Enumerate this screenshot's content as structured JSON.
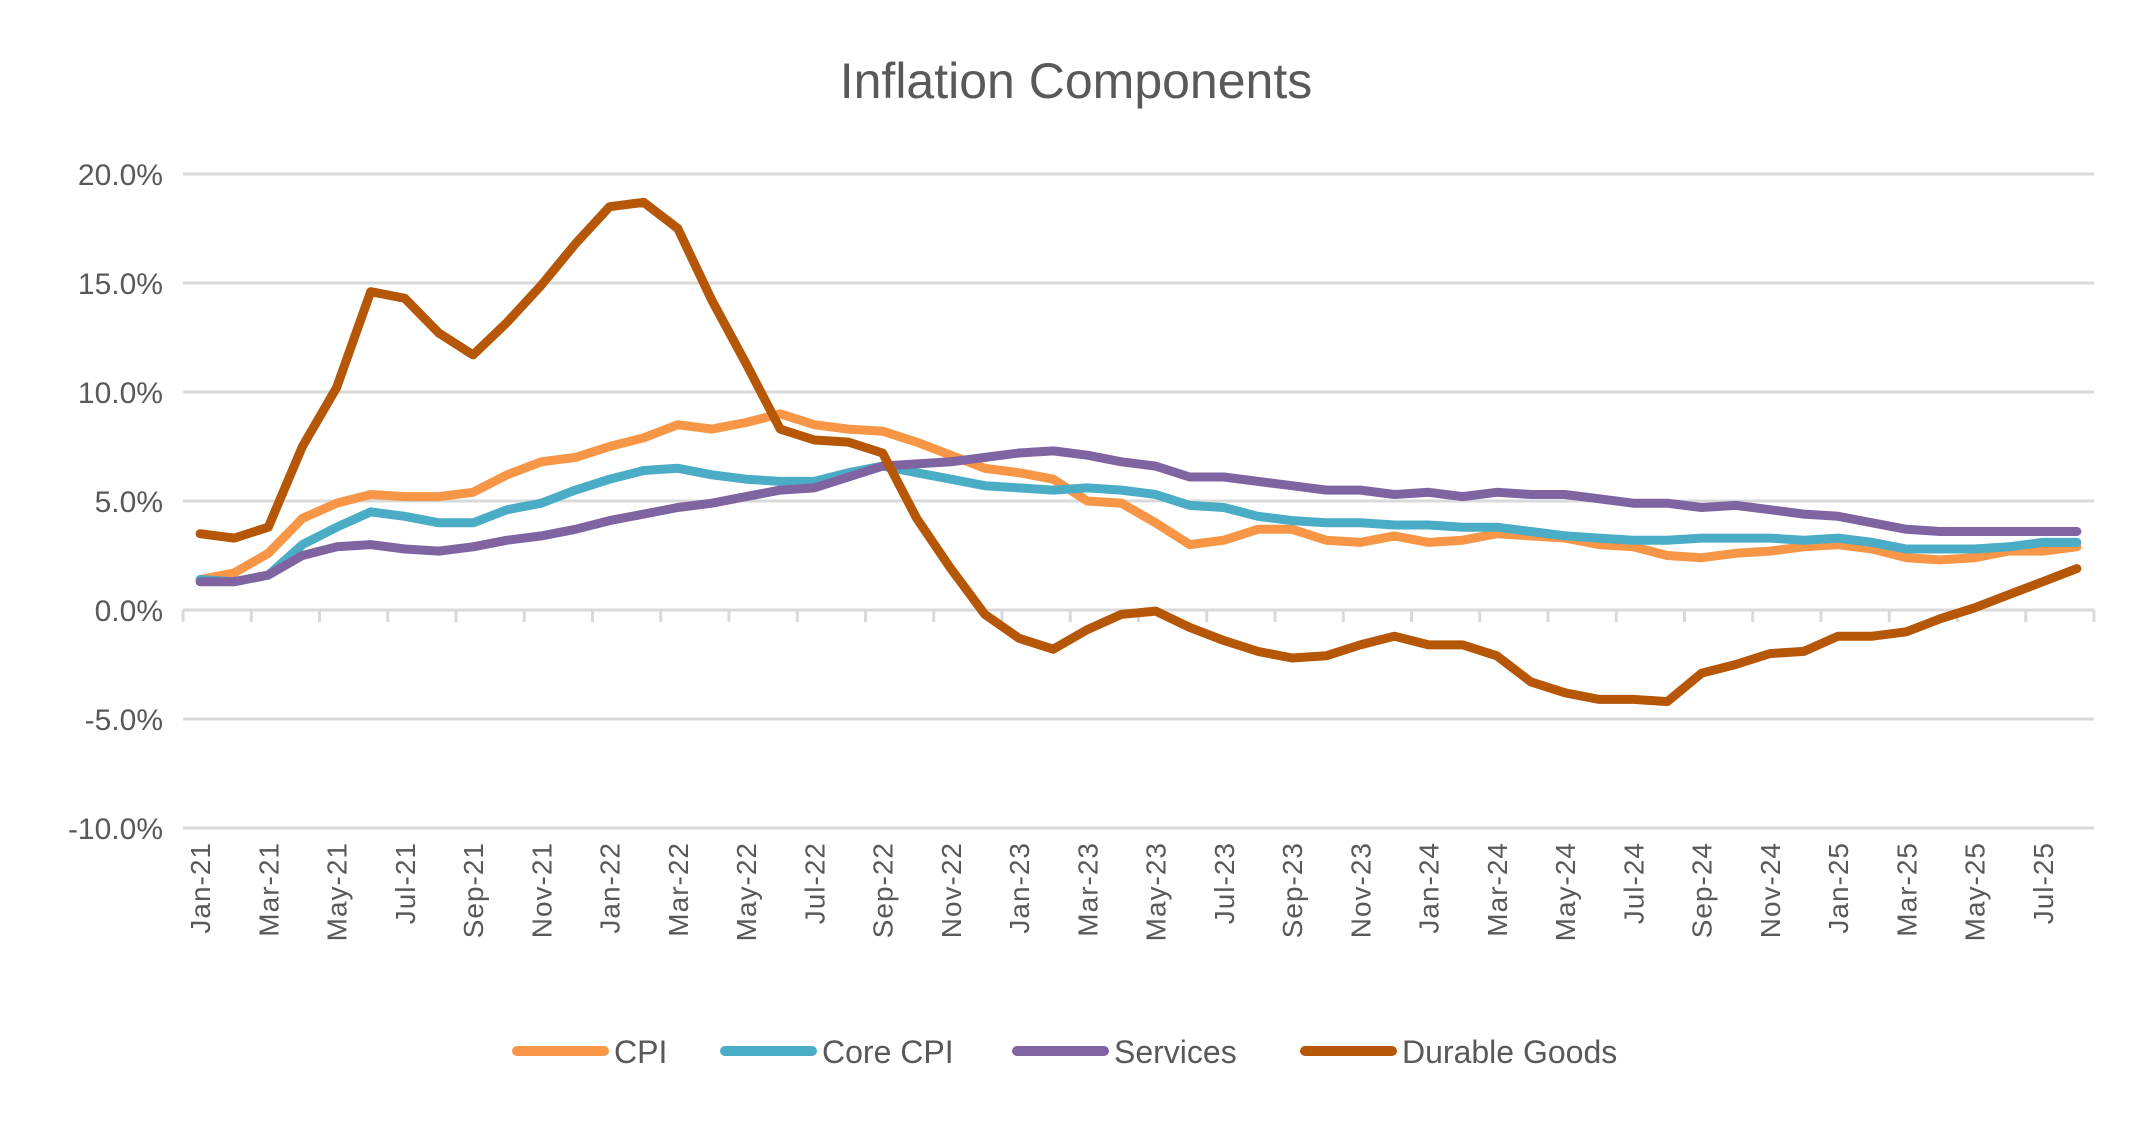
{
  "chart_data": {
    "type": "line",
    "title": "Inflation Components",
    "xlabel": "",
    "ylabel": "",
    "ylim": [
      -10,
      20
    ],
    "yticks": [
      -10,
      -5,
      0,
      5,
      10,
      15,
      20
    ],
    "ytick_labels": [
      "-10.0%",
      "-5.0%",
      "0.0%",
      "5.0%",
      "10.0%",
      "15.0%",
      "20.0%"
    ],
    "grid": true,
    "legend_position": "bottom",
    "x": [
      "Jan-21",
      "Feb-21",
      "Mar-21",
      "Apr-21",
      "May-21",
      "Jun-21",
      "Jul-21",
      "Aug-21",
      "Sep-21",
      "Oct-21",
      "Nov-21",
      "Dec-21",
      "Jan-22",
      "Feb-22",
      "Mar-22",
      "Apr-22",
      "May-22",
      "Jun-22",
      "Jul-22",
      "Aug-22",
      "Sep-22",
      "Oct-22",
      "Nov-22",
      "Dec-22",
      "Jan-23",
      "Feb-23",
      "Mar-23",
      "Apr-23",
      "May-23",
      "Jun-23",
      "Jul-23",
      "Aug-23",
      "Sep-23",
      "Oct-23",
      "Nov-23",
      "Dec-23",
      "Jan-24",
      "Feb-24",
      "Mar-24",
      "Apr-24",
      "May-24",
      "Jun-24",
      "Jul-24",
      "Aug-24",
      "Sep-24",
      "Oct-24",
      "Nov-24",
      "Dec-24",
      "Jan-25",
      "Feb-25",
      "Mar-25",
      "Apr-25",
      "May-25",
      "Jun-25",
      "Jul-25",
      "Aug-25"
    ],
    "xtick_labels": [
      "Jan-21",
      "Mar-21",
      "May-21",
      "Jul-21",
      "Sep-21",
      "Nov-21",
      "Jan-22",
      "Mar-22",
      "May-22",
      "Jul-22",
      "Sep-22",
      "Nov-22",
      "Jan-23",
      "Mar-23",
      "May-23",
      "Jul-23",
      "Sep-23",
      "Nov-23",
      "Jan-24",
      "Mar-24",
      "May-24",
      "Jul-24",
      "Sep-24",
      "Nov-24",
      "Jan-25",
      "Mar-25",
      "May-25",
      "Jul-25"
    ],
    "series": [
      {
        "name": "CPI",
        "color": "#F79646",
        "values": [
          1.4,
          1.7,
          2.6,
          4.2,
          4.9,
          5.3,
          5.2,
          5.2,
          5.4,
          6.2,
          6.8,
          7.0,
          7.5,
          7.9,
          8.5,
          8.3,
          8.6,
          9.0,
          8.5,
          8.3,
          8.2,
          7.7,
          7.1,
          6.5,
          6.3,
          6.0,
          5.0,
          4.9,
          4.0,
          3.0,
          3.2,
          3.7,
          3.7,
          3.2,
          3.1,
          3.4,
          3.1,
          3.2,
          3.5,
          3.4,
          3.3,
          3.0,
          2.9,
          2.5,
          2.4,
          2.6,
          2.7,
          2.9,
          3.0,
          2.8,
          2.4,
          2.3,
          2.4,
          2.7,
          2.7,
          2.9
        ]
      },
      {
        "name": "Core CPI",
        "color": "#4BACC6",
        "values": [
          1.4,
          1.3,
          1.6,
          3.0,
          3.8,
          4.5,
          4.3,
          4.0,
          4.0,
          4.6,
          4.9,
          5.5,
          6.0,
          6.4,
          6.5,
          6.2,
          6.0,
          5.9,
          5.9,
          6.3,
          6.6,
          6.3,
          6.0,
          5.7,
          5.6,
          5.5,
          5.6,
          5.5,
          5.3,
          4.8,
          4.7,
          4.3,
          4.1,
          4.0,
          4.0,
          3.9,
          3.9,
          3.8,
          3.8,
          3.6,
          3.4,
          3.3,
          3.2,
          3.2,
          3.3,
          3.3,
          3.3,
          3.2,
          3.3,
          3.1,
          2.8,
          2.8,
          2.8,
          2.9,
          3.1,
          3.1
        ]
      },
      {
        "name": "Services",
        "color": "#8064A2",
        "values": [
          1.3,
          1.3,
          1.6,
          2.5,
          2.9,
          3.0,
          2.8,
          2.7,
          2.9,
          3.2,
          3.4,
          3.7,
          4.1,
          4.4,
          4.7,
          4.9,
          5.2,
          5.5,
          5.6,
          6.1,
          6.6,
          6.7,
          6.8,
          7.0,
          7.2,
          7.3,
          7.1,
          6.8,
          6.6,
          6.1,
          6.1,
          5.9,
          5.7,
          5.5,
          5.5,
          5.3,
          5.4,
          5.2,
          5.4,
          5.3,
          5.3,
          5.1,
          4.9,
          4.9,
          4.7,
          4.8,
          4.6,
          4.4,
          4.3,
          4.0,
          3.7,
          3.6,
          3.6,
          3.6,
          3.6,
          3.6
        ]
      },
      {
        "name": "Durable Goods",
        "color": "#B65708",
        "values": [
          3.5,
          3.3,
          3.8,
          7.5,
          10.2,
          14.6,
          14.3,
          12.7,
          11.7,
          13.2,
          14.9,
          16.8,
          18.5,
          18.7,
          17.5,
          14.2,
          11.3,
          8.3,
          7.8,
          7.7,
          7.2,
          4.2,
          1.9,
          -0.2,
          -1.3,
          -1.8,
          -0.9,
          -0.2,
          -0.05,
          -0.8,
          -1.4,
          -1.9,
          -2.2,
          -2.1,
          -1.6,
          -1.2,
          -1.6,
          -1.6,
          -2.1,
          -3.3,
          -3.8,
          -4.1,
          -4.1,
          -4.2,
          -2.9,
          -2.5,
          -2.0,
          -1.9,
          -1.2,
          -1.2,
          -1.0,
          -0.4,
          0.1,
          0.7,
          1.3,
          1.9
        ]
      }
    ]
  }
}
